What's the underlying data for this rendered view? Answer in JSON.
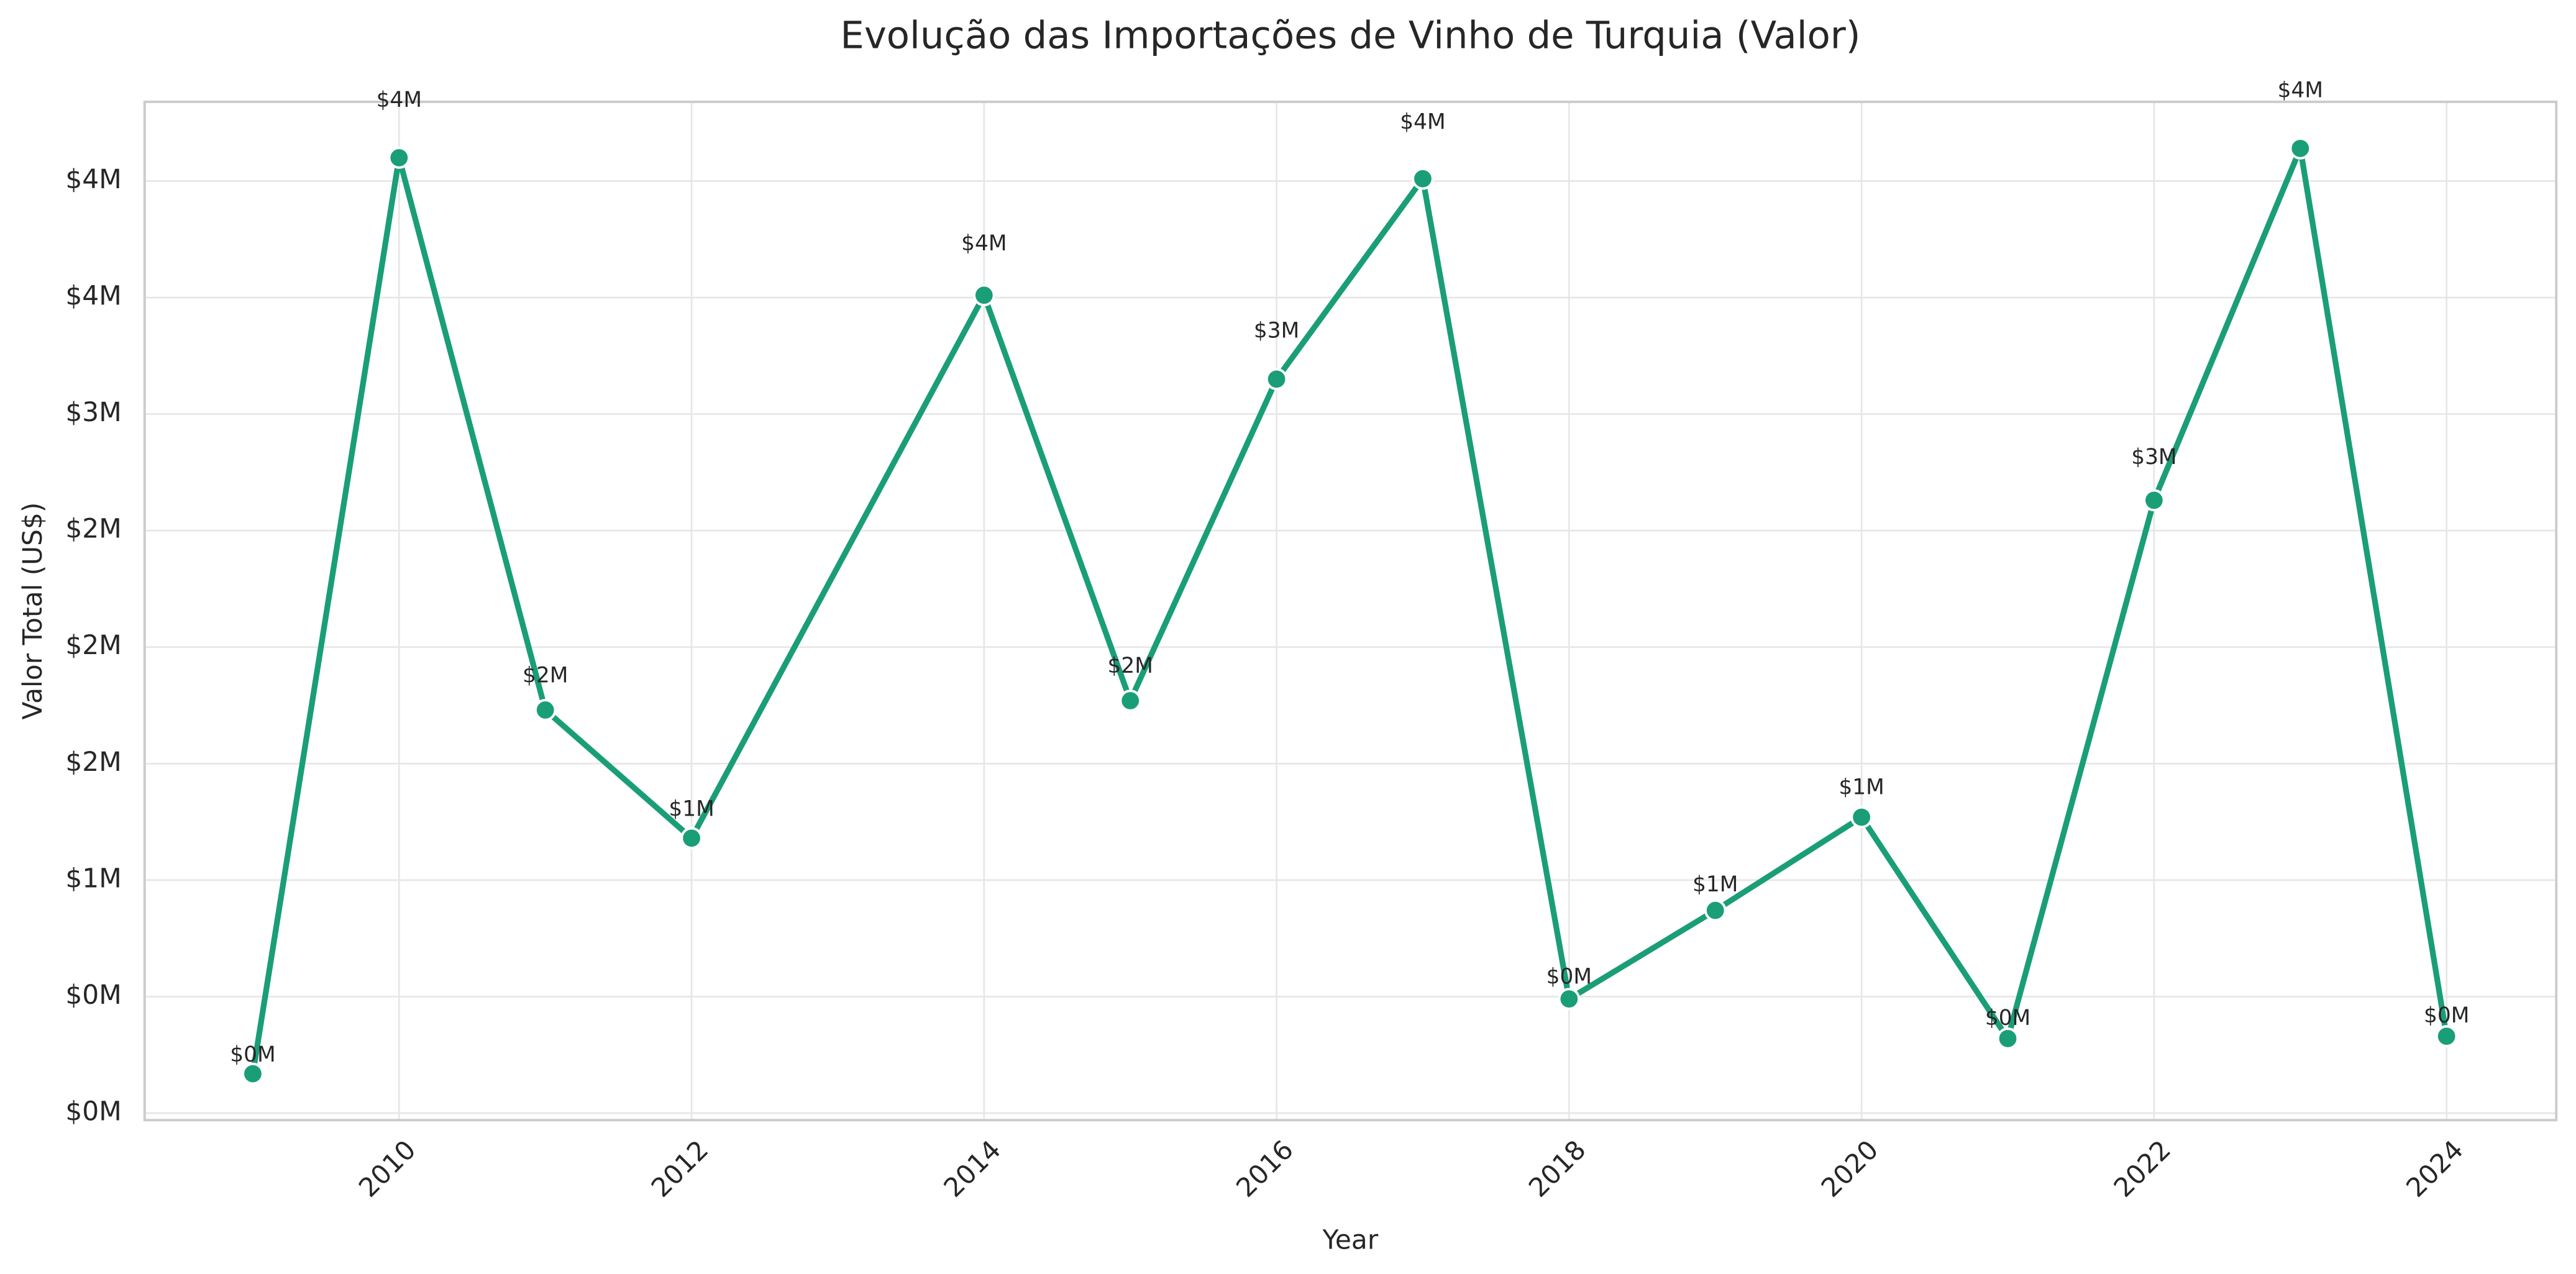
{
  "chart_data": {
    "type": "line",
    "title": "Evolução das Importações de Vinho de Turquia (Valor)",
    "x_label": "Year",
    "y_label": "Valor Total (US$)",
    "x": [
      2009,
      2010,
      2011,
      2012,
      2014,
      2015,
      2016,
      2017,
      2018,
      2019,
      2020,
      2021,
      2022,
      2023,
      2024
    ],
    "values": [
      169000,
      4100000,
      1730000,
      1180000,
      3510000,
      1770000,
      3150000,
      4010000,
      490000,
      870000,
      1270000,
      320000,
      2630000,
      4140000,
      330000
    ],
    "value_labels": [
      "$0M",
      "$4M",
      "$2M",
      "$1M",
      "$4M",
      "$2M",
      "$3M",
      "$4M",
      "$0M",
      "$1M",
      "$1M",
      "$0M",
      "$3M",
      "$4M",
      "$0M"
    ],
    "color": "#1a9e77",
    "xlim": [
      2008.26,
      2024.75
    ],
    "xticks": [
      2010,
      2012,
      2014,
      2016,
      2018,
      2020,
      2022,
      2024
    ],
    "ylim": [
      -30000,
      4340000
    ],
    "yticks": [
      {
        "value": 0,
        "label": "$0M"
      },
      {
        "value": 500000,
        "label": "$0M"
      },
      {
        "value": 1000000,
        "label": "$1M"
      },
      {
        "value": 1500000,
        "label": "$2M"
      },
      {
        "value": 2000000,
        "label": "$2M"
      },
      {
        "value": 2500000,
        "label": "$2M"
      },
      {
        "value": 3000000,
        "label": "$3M"
      },
      {
        "value": 3500000,
        "label": "$4M"
      },
      {
        "value": 4000000,
        "label": "$4M"
      }
    ],
    "grid": true
  }
}
